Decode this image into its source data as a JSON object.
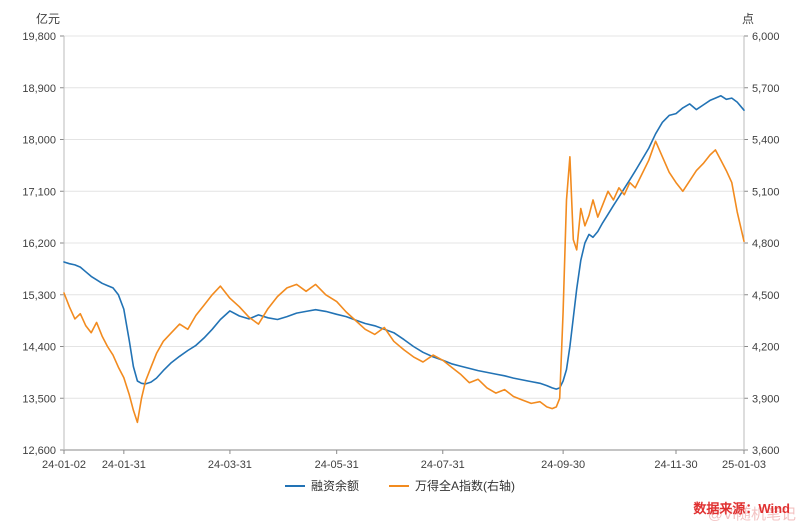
{
  "chart_data": {
    "type": "line",
    "title": "",
    "x_tick_labels": [
      "24-01-02",
      "24-01-31",
      "24-03-31",
      "24-05-31",
      "24-07-31",
      "24-09-30",
      "24-11-30",
      "25-01-03"
    ],
    "x_tick_pos": [
      0,
      0.088,
      0.244,
      0.401,
      0.557,
      0.734,
      0.9,
      1.0
    ],
    "left_axis": {
      "unit": "亿元",
      "min": 12600,
      "max": 19800,
      "step": 900
    },
    "right_axis": {
      "unit": "点",
      "min": 3600,
      "max": 6000,
      "step": 300
    },
    "grid": true,
    "legend_position": "bottom",
    "x": [
      0.0,
      0.008,
      0.016,
      0.024,
      0.032,
      0.04,
      0.048,
      0.056,
      0.064,
      0.072,
      0.08,
      0.088,
      0.096,
      0.102,
      0.108,
      0.114,
      0.12,
      0.128,
      0.136,
      0.146,
      0.158,
      0.17,
      0.182,
      0.194,
      0.206,
      0.218,
      0.23,
      0.244,
      0.258,
      0.272,
      0.286,
      0.3,
      0.314,
      0.328,
      0.342,
      0.356,
      0.37,
      0.385,
      0.401,
      0.415,
      0.429,
      0.443,
      0.457,
      0.471,
      0.485,
      0.5,
      0.514,
      0.528,
      0.543,
      0.557,
      0.57,
      0.583,
      0.596,
      0.609,
      0.622,
      0.635,
      0.648,
      0.661,
      0.674,
      0.687,
      0.7,
      0.71,
      0.718,
      0.724,
      0.729,
      0.734,
      0.739,
      0.744,
      0.749,
      0.754,
      0.76,
      0.766,
      0.772,
      0.778,
      0.785,
      0.792,
      0.8,
      0.808,
      0.816,
      0.824,
      0.832,
      0.84,
      0.85,
      0.86,
      0.87,
      0.88,
      0.89,
      0.9,
      0.91,
      0.92,
      0.93,
      0.94,
      0.95,
      0.958,
      0.966,
      0.974,
      0.982,
      0.99,
      1.0
    ],
    "series": [
      {
        "name": "融资余额",
        "axis": "left",
        "color": "#2273b5",
        "values": [
          15870,
          15840,
          15820,
          15780,
          15700,
          15620,
          15560,
          15500,
          15460,
          15420,
          15300,
          15050,
          14500,
          14050,
          13800,
          13760,
          13750,
          13780,
          13850,
          13980,
          14120,
          14230,
          14330,
          14420,
          14550,
          14700,
          14870,
          15020,
          14930,
          14880,
          14950,
          14900,
          14870,
          14920,
          14980,
          15010,
          15040,
          15010,
          14960,
          14920,
          14860,
          14800,
          14760,
          14700,
          14640,
          14520,
          14400,
          14300,
          14220,
          14160,
          14100,
          14060,
          14020,
          13980,
          13950,
          13920,
          13890,
          13850,
          13820,
          13790,
          13760,
          13720,
          13680,
          13660,
          13680,
          13800,
          14000,
          14400,
          14900,
          15400,
          15900,
          16200,
          16350,
          16300,
          16400,
          16550,
          16700,
          16850,
          17000,
          17150,
          17300,
          17450,
          17650,
          17850,
          18100,
          18300,
          18420,
          18450,
          18550,
          18620,
          18520,
          18600,
          18680,
          18720,
          18760,
          18700,
          18720,
          18650,
          18510
        ]
      },
      {
        "name": "万得全A指数(右轴)",
        "axis": "right",
        "color": "#f28b1f",
        "values": [
          4510,
          4430,
          4360,
          4390,
          4320,
          4280,
          4340,
          4260,
          4200,
          4150,
          4080,
          4020,
          3920,
          3830,
          3760,
          3900,
          4000,
          4080,
          4160,
          4230,
          4280,
          4330,
          4300,
          4380,
          4440,
          4500,
          4550,
          4480,
          4430,
          4370,
          4330,
          4420,
          4490,
          4540,
          4560,
          4520,
          4560,
          4500,
          4460,
          4400,
          4350,
          4300,
          4270,
          4310,
          4230,
          4180,
          4140,
          4110,
          4150,
          4120,
          4080,
          4040,
          3990,
          4010,
          3960,
          3930,
          3950,
          3910,
          3890,
          3870,
          3880,
          3850,
          3840,
          3850,
          3900,
          4400,
          5050,
          5300,
          4820,
          4760,
          5000,
          4900,
          4960,
          5050,
          4950,
          5020,
          5100,
          5050,
          5120,
          5080,
          5150,
          5120,
          5200,
          5280,
          5390,
          5300,
          5210,
          5150,
          5100,
          5160,
          5220,
          5260,
          5310,
          5340,
          5280,
          5220,
          5150,
          4980,
          4810
        ]
      }
    ]
  },
  "watermark": {
    "source": "数据来源：Wind",
    "handle": "@Vi随机笔记"
  }
}
